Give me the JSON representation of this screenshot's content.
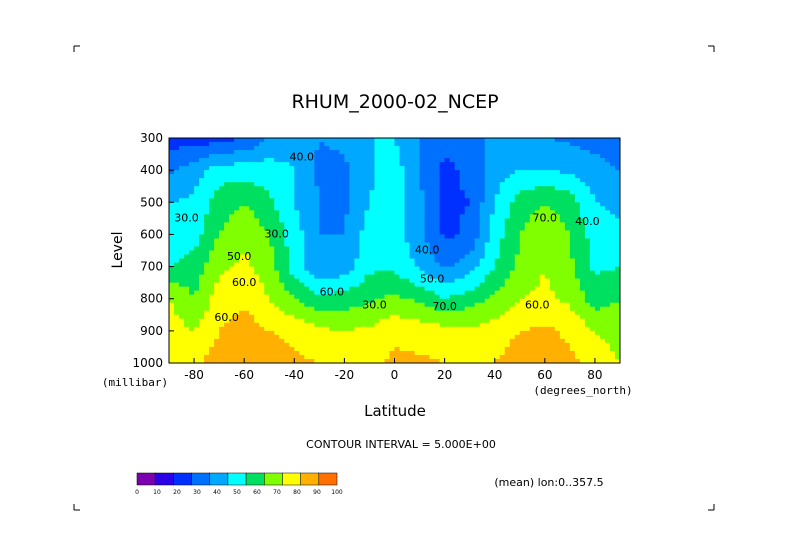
{
  "chart_data": {
    "type": "heatmap",
    "title": "RHUM_2000-02_NCEP",
    "xlabel": "Latitude",
    "ylabel": "Level",
    "x_unit": "(degrees_north)",
    "y_unit": "(millibar)",
    "xlim": [
      -90,
      90
    ],
    "ylim": [
      1000,
      300
    ],
    "x_ticks": [
      "-80",
      "-60",
      "-40",
      "-20",
      "0",
      "20",
      "40",
      "60",
      "80"
    ],
    "y_ticks": [
      "300",
      "400",
      "500",
      "600",
      "700",
      "800",
      "900",
      "1000"
    ],
    "contour_interval_text": "CONTOUR INTERVAL = 5.000E+00",
    "mean_text": "(mean) lon:0..357.5",
    "contour_labels": [
      "40.0",
      "30.0",
      "50.0",
      "60.0",
      "30.0",
      "60.0",
      "30.0",
      "40.0",
      "50.0",
      "70.0",
      "60.0",
      "70.0",
      "40.0",
      "60.0"
    ],
    "colorbar": {
      "labels": [
        "0",
        "10",
        "20",
        "30",
        "40",
        "50",
        "60",
        "70",
        "80",
        "90",
        "100"
      ],
      "colors": [
        "#7a00b0",
        "#2a00e6",
        "#0030ff",
        "#0070ff",
        "#00a8ff",
        "#00ffff",
        "#00e060",
        "#80ff00",
        "#ffff00",
        "#ffb000",
        "#ff7000",
        "#ff0000"
      ]
    },
    "grid": false,
    "latitudes": [
      -90,
      -80,
      -70,
      -60,
      -50,
      -40,
      -30,
      -20,
      -10,
      0,
      10,
      20,
      30,
      40,
      50,
      60,
      70,
      80,
      90
    ],
    "levels": [
      300,
      400,
      500,
      600,
      700,
      800,
      900,
      1000
    ],
    "values": [
      [
        15,
        15,
        15,
        20,
        30,
        35,
        30,
        32,
        40,
        40,
        30,
        22,
        26,
        33,
        32,
        30,
        28,
        25,
        22
      ],
      [
        28,
        35,
        45,
        45,
        45,
        40,
        28,
        28,
        38,
        45,
        30,
        18,
        22,
        35,
        40,
        40,
        38,
        35,
        30
      ],
      [
        40,
        42,
        55,
        60,
        52,
        40,
        30,
        28,
        40,
        46,
        32,
        18,
        20,
        40,
        55,
        60,
        55,
        40,
        38
      ],
      [
        42,
        45,
        60,
        68,
        60,
        45,
        30,
        30,
        45,
        46,
        32,
        18,
        22,
        45,
        60,
        68,
        60,
        45,
        42
      ],
      [
        50,
        55,
        68,
        72,
        65,
        45,
        32,
        34,
        48,
        48,
        38,
        28,
        35,
        50,
        62,
        70,
        62,
        48,
        50
      ],
      [
        70,
        60,
        75,
        78,
        70,
        60,
        52,
        55,
        58,
        62,
        58,
        50,
        55,
        62,
        70,
        72,
        68,
        55,
        60
      ],
      [
        75,
        70,
        80,
        85,
        80,
        78,
        72,
        70,
        72,
        78,
        75,
        74,
        72,
        75,
        80,
        82,
        78,
        70,
        65
      ],
      [
        80,
        78,
        85,
        90,
        85,
        82,
        80,
        78,
        78,
        82,
        82,
        80,
        80,
        80,
        85,
        85,
        82,
        78,
        70
      ]
    ]
  }
}
